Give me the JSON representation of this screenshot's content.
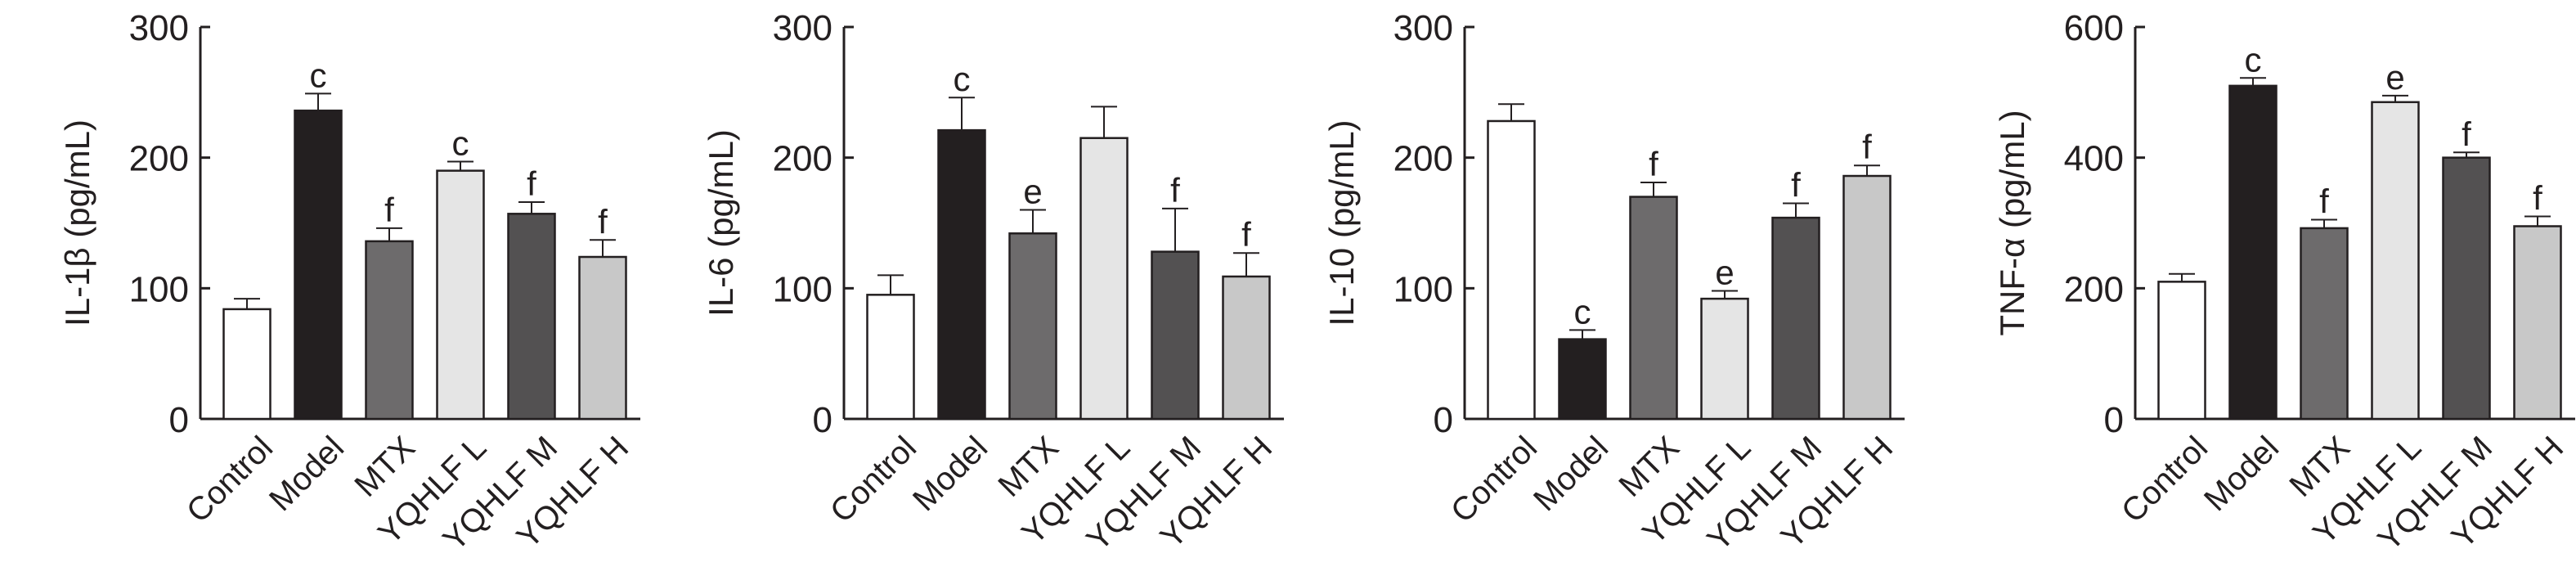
{
  "chart_data": [
    {
      "type": "bar",
      "ylabel": "IL-1β (pg/mL)",
      "ylim": [
        0,
        300
      ],
      "yticks": [
        "0",
        "100",
        "200",
        "300"
      ],
      "categories": [
        "Control",
        "Model",
        "MTX",
        "YQHLF L",
        "YQHLF M",
        "YQHLF H"
      ],
      "values": [
        84,
        236,
        136,
        190,
        157,
        124
      ],
      "errors": [
        8,
        13,
        10,
        7,
        9,
        13
      ],
      "annotations": [
        "",
        "c",
        "f",
        "c",
        "f",
        "f"
      ]
    },
    {
      "type": "bar",
      "ylabel": "IL-6 (pg/mL)",
      "ylim": [
        0,
        300
      ],
      "yticks": [
        "0",
        "100",
        "200",
        "300"
      ],
      "categories": [
        "Control",
        "Model",
        "MTX",
        "YQHLF L",
        "YQHLF M",
        "YQHLF H"
      ],
      "values": [
        95,
        221,
        142,
        215,
        128,
        109
      ],
      "errors": [
        15,
        25,
        18,
        24,
        33,
        18
      ],
      "annotations": [
        "",
        "c",
        "e",
        "",
        "f",
        "f"
      ]
    },
    {
      "type": "bar",
      "ylabel": "IL-10 (pg/mL)",
      "ylim": [
        0,
        300
      ],
      "yticks": [
        "0",
        "100",
        "200",
        "300"
      ],
      "categories": [
        "Control",
        "Model",
        "MTX",
        "YQHLF L",
        "YQHLF M",
        "YQHLF H"
      ],
      "values": [
        228,
        61,
        170,
        92,
        154,
        186
      ],
      "errors": [
        13,
        7,
        11,
        6,
        11,
        8
      ],
      "annotations": [
        "",
        "c",
        "f",
        "e",
        "f",
        "f"
      ]
    },
    {
      "type": "bar",
      "ylabel": "TNF-α (pg/mL)",
      "ylim": [
        0,
        600
      ],
      "yticks": [
        "0",
        "200",
        "400",
        "600"
      ],
      "categories": [
        "Control",
        "Model",
        "MTX",
        "YQHLF L",
        "YQHLF M",
        "YQHLF H"
      ],
      "values": [
        210,
        510,
        292,
        485,
        400,
        295
      ],
      "errors": [
        12,
        12,
        13,
        10,
        8,
        15
      ],
      "annotations": [
        "",
        "c",
        "f",
        "e",
        "f",
        "f"
      ]
    }
  ],
  "bar_colors": [
    "#ffffff",
    "#231f20",
    "#6d6b6c",
    "#e5e5e5",
    "#535152",
    "#c8c8c8"
  ]
}
